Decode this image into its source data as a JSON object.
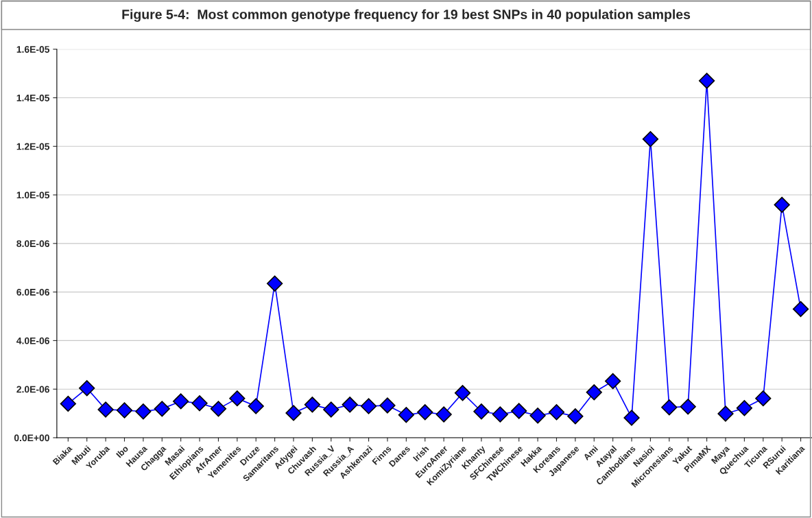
{
  "chart_data": {
    "type": "line",
    "title": "Figure 5-4:  Most common genotype frequency for 19 best SNPs in 40 population samples",
    "categories": [
      "Biaka",
      "Mbuti",
      "Yoruba",
      "Ibo",
      "Hausa",
      "Chagga",
      "Masai",
      "Ethiopians",
      "AfrAmer",
      "Yemenites",
      "Druze",
      "Samaritans",
      "Adygei",
      "Chuvash",
      "Russia_V",
      "Russia_A",
      "Ashkenazi",
      "Finns",
      "Danes",
      "Irish",
      "EuroAmer",
      "KomiZyriane",
      "Khanty",
      "SFChinese",
      "TWChinese",
      "Hakka",
      "Koreans",
      "Japanese",
      "Ami",
      "Atayal",
      "Cambodians",
      "Nasioi",
      "Micronesians",
      "Yakut",
      "PimaMX",
      "Maya",
      "Quechua",
      "Ticuna",
      "RSurui",
      "Karitiana"
    ],
    "series": [
      {
        "color": "#0000ff",
        "values": [
          1.4e-06,
          2.04e-06,
          1.16e-06,
          1.13e-06,
          1.08e-06,
          1.19e-06,
          1.5e-06,
          1.42e-06,
          1.19e-06,
          1.62e-06,
          1.3e-06,
          6.35e-06,
          1.02e-06,
          1.36e-06,
          1.16e-06,
          1.36e-06,
          1.3e-06,
          1.33e-06,
          9.4e-07,
          1.05e-06,
          9.6e-07,
          1.84e-06,
          1.08e-06,
          9.6e-07,
          1.1e-06,
          9.1e-07,
          1.05e-06,
          8.8e-07,
          1.87e-06,
          2.33e-06,
          8.2e-07,
          1.23e-05,
          1.25e-06,
          1.28e-06,
          1.47e-05,
          9.9e-07,
          1.22e-06,
          1.62e-06,
          9.59e-06,
          5.3e-06
        ]
      }
    ],
    "ylim": [
      0,
      1.6e-05
    ],
    "yticks": [
      {
        "value": 0,
        "label": "0.0E+00"
      },
      {
        "value": 2e-06,
        "label": "2.0E-06"
      },
      {
        "value": 4e-06,
        "label": "4.0E-06"
      },
      {
        "value": 6e-06,
        "label": "6.0E-06"
      },
      {
        "value": 8e-06,
        "label": "8.0E-06"
      },
      {
        "value": 1e-05,
        "label": "1.0E-05"
      },
      {
        "value": 1.2e-05,
        "label": "1.2E-05"
      },
      {
        "value": 1.4e-05,
        "label": "1.4E-05"
      },
      {
        "value": 1.6e-05,
        "label": "1.6E-05"
      }
    ],
    "grid": "y",
    "marker": "diamond",
    "line_style": "solid",
    "legend": false
  }
}
